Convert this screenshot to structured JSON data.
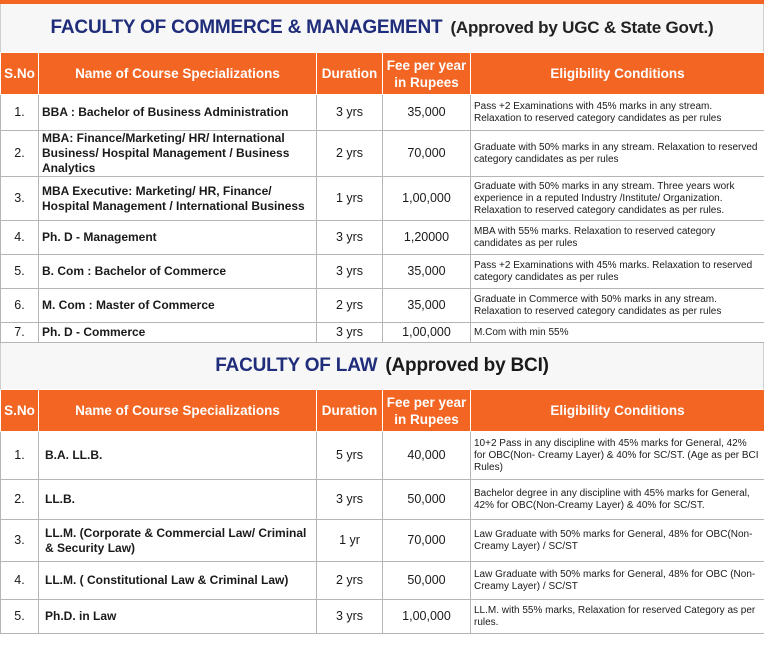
{
  "commerce": {
    "title": "FACULTY OF COMMERCE & MANAGEMENT",
    "approval": "(Approved by UGC & State Govt.)",
    "headers": {
      "sno": "S.No",
      "course": "Name of Course Specializations",
      "duration": "Duration",
      "fee": "Fee per year in Rupees",
      "eligibility": "Eligibility Conditions"
    },
    "rows": [
      {
        "sno": "1.",
        "course": "BBA : Bachelor of Business Administration",
        "duration": "3 yrs",
        "fee": "35,000",
        "eligibility": "Pass +2 Examinations with 45% marks in any stream. Relaxation to reserved category candidates as per rules"
      },
      {
        "sno": "2.",
        "course": "MBA: Finance/Marketing/ HR/ International Business/ Hospital Management / Business Analytics",
        "duration": "2 yrs",
        "fee": "70,000",
        "eligibility": "Graduate with 50% marks in any stream. Relaxation to reserved category candidates as per rules"
      },
      {
        "sno": "3.",
        "course": "MBA Executive: Marketing/ HR, Finance/ Hospital Management / International Business",
        "duration": "1 yrs",
        "fee": "1,00,000",
        "eligibility": "Graduate with 50% marks in any stream. Three years work experience in a reputed Industry /Institute/ Organization. Relaxation to reserved category candidates as per rules."
      },
      {
        "sno": "4.",
        "course": "Ph. D - Management",
        "duration": "3 yrs",
        "fee": "1,20000",
        "eligibility": "MBA with 55% marks. Relaxation to reserved category candidates as per rules"
      },
      {
        "sno": "5.",
        "course": "B. Com : Bachelor of Commerce",
        "duration": "3 yrs",
        "fee": "35,000",
        "eligibility": "Pass +2 Examinations with 45% marks. Relaxation to reserved category candidates as per rules"
      },
      {
        "sno": "6.",
        "course": "M. Com : Master of Commerce",
        "duration": "2 yrs",
        "fee": "35,000",
        "eligibility": "Graduate in Commerce with 50% marks in any stream. Relaxation to reserved category candidates as per rules"
      },
      {
        "sno": "7.",
        "course": "Ph. D - Commerce",
        "duration": "3 yrs",
        "fee": "1,00,000",
        "eligibility": "M.Com with min 55%"
      }
    ]
  },
  "law": {
    "title": "FACULTY OF LAW",
    "approval": "(Approved by BCI)",
    "headers": {
      "sno": "S.No",
      "course": "Name of Course Specializations",
      "duration": "Duration",
      "fee": "Fee per year in Rupees",
      "eligibility": "Eligibility Conditions"
    },
    "rows": [
      {
        "sno": "1.",
        "course": "B.A. LL.B.",
        "duration": "5 yrs",
        "fee": "40,000",
        "eligibility": "10+2 Pass in any discipline with 45% marks for General, 42% for OBC(Non- Creamy Layer) & 40% for SC/ST. (Age as per BCI Rules)"
      },
      {
        "sno": "2.",
        "course": "LL.B.",
        "duration": "3 yrs",
        "fee": "50,000",
        "eligibility": "Bachelor degree in any discipline with 45% marks for General, 42% for OBC(Non-Creamy Layer) & 40% for SC/ST."
      },
      {
        "sno": "3.",
        "course": "LL.M. (Corporate & Commercial Law/ Criminal & Security Law)",
        "duration": "1 yr",
        "fee": "70,000",
        "eligibility": "Law Graduate with 50% marks for General, 48% for OBC(Non-Creamy Layer) / SC/ST"
      },
      {
        "sno": "4.",
        "course": "LL.M. ( Constitutional Law & Criminal Law)",
        "duration": "2 yrs",
        "fee": "50,000",
        "eligibility": "Law Graduate with 50% marks for General, 48% for OBC (Non-Creamy Layer) / SC/ST"
      },
      {
        "sno": "5.",
        "course": "Ph.D. in Law",
        "duration": "3 yrs",
        "fee": "1,00,000",
        "eligibility": "LL.M. with 55% marks, Relaxation for reserved Category as per rules."
      }
    ]
  }
}
